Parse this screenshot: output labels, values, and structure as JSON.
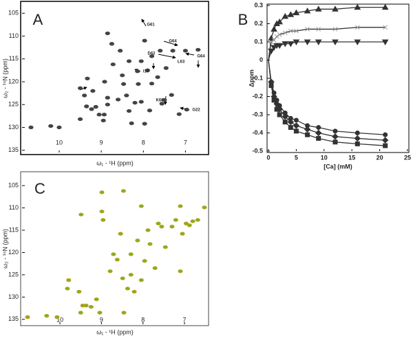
{
  "chart_data": [
    {
      "type": "scatter",
      "panel_label": "A",
      "x_label": "ω₁ - ¹H  (ppm)",
      "y_label": "ω₂ - ¹⁵N  (ppm)",
      "xlim": [
        10.85,
        6.5
      ],
      "ylim": [
        135.5,
        103
      ],
      "xticks": [
        10,
        9,
        8,
        7
      ],
      "yticks": [
        105,
        110,
        115,
        120,
        125,
        130,
        135
      ],
      "color": "#444444",
      "x": [
        10.67,
        10.2,
        10.0,
        9.5,
        9.5,
        9.35,
        9.23,
        9.13,
        9.05,
        8.93,
        8.85,
        8.75,
        8.72,
        8.6,
        8.5,
        8.47,
        8.4,
        8.34,
        8.28,
        8.2,
        8.12,
        8.05,
        7.97,
        7.9,
        7.8,
        7.66,
        7.56,
        7.46,
        7.33,
        9.4,
        9.2,
        8.92,
        8.85,
        8.95,
        8.55,
        8.34,
        8.14,
        8.05,
        7.85,
        7.5,
        7.15,
        6.97,
        7.8,
        7.97,
        8.85,
        9.33,
        7.6,
        7.3,
        7.0,
        6.7
      ],
      "values": [
        130.0,
        129.7,
        130.0,
        128.2,
        121.4,
        125.4,
        126.0,
        125.5,
        127.2,
        127.2,
        109.4,
        111.7,
        116.2,
        123.9,
        118.6,
        120.5,
        123.0,
        126.4,
        129.1,
        124.6,
        120.5,
        115.5,
        111.0,
        117.5,
        114.4,
        119.0,
        124.8,
        117.0,
        122.9,
        123.0,
        122.0,
        120.0,
        125.0,
        128.5,
        113.2,
        115.5,
        117.7,
        124.4,
        126.3,
        124.0,
        127.1,
        126.1,
        120.4,
        129.2,
        123.5,
        119.3,
        113.2,
        113.2,
        113.2,
        113.0
      ],
      "annotations": [
        "G61",
        "G64",
        "D62",
        "L63",
        "G64",
        "I16",
        "K66",
        "G22"
      ]
    },
    {
      "type": "line",
      "panel_label": "B",
      "x_label": "[Ca] (mM)",
      "y_label": "Δppm",
      "xlim": [
        0,
        25
      ],
      "ylim": [
        -0.5,
        0.3
      ],
      "xticks": [
        0,
        5,
        10,
        15,
        20,
        25
      ],
      "yticks": [
        -0.5,
        -0.4,
        -0.3,
        -0.2,
        -0.1,
        0,
        0.1,
        0.2,
        0.3
      ],
      "x": [
        0,
        0.5,
        1,
        1.5,
        2,
        3,
        4,
        5,
        7,
        9,
        12,
        16,
        21
      ],
      "series": [
        {
          "marker": "triangle-up",
          "color": "#333333",
          "values": [
            0,
            0.12,
            0.17,
            0.2,
            0.21,
            0.24,
            0.25,
            0.26,
            0.27,
            0.28,
            0.28,
            0.29,
            0.29
          ]
        },
        {
          "marker": "x",
          "color": "#999999",
          "values": [
            0,
            0.1,
            0.11,
            0.13,
            0.14,
            0.15,
            0.16,
            0.16,
            0.17,
            0.17,
            0.17,
            0.18,
            0.18
          ]
        },
        {
          "marker": "triangle-down",
          "color": "#333333",
          "values": [
            0,
            0.05,
            0.07,
            0.08,
            0.08,
            0.09,
            0.09,
            0.1,
            0.1,
            0.1,
            0.1,
            0.1,
            0.1
          ]
        },
        {
          "marker": "circle",
          "color": "#333333",
          "values": [
            0,
            -0.12,
            -0.18,
            -0.22,
            -0.25,
            -0.29,
            -0.32,
            -0.33,
            -0.36,
            -0.37,
            -0.39,
            -0.4,
            -0.41
          ]
        },
        {
          "marker": "diamond",
          "color": "#333333",
          "values": [
            0,
            -0.12,
            -0.2,
            -0.24,
            -0.27,
            -0.31,
            -0.34,
            -0.36,
            -0.38,
            -0.4,
            -0.42,
            -0.43,
            -0.44
          ]
        },
        {
          "marker": "square",
          "color": "#333333",
          "values": [
            0,
            -0.14,
            -0.22,
            -0.27,
            -0.3,
            -0.34,
            -0.37,
            -0.39,
            -0.41,
            -0.43,
            -0.45,
            -0.46,
            -0.47
          ]
        }
      ]
    },
    {
      "type": "scatter",
      "panel_label": "C",
      "x_label": "ω₁ - ¹H  (ppm)",
      "y_label": "ω₂ - ¹⁵N  (ppm)",
      "xlim": [
        10.88,
        6.47
      ],
      "ylim": [
        136.1,
        102.2
      ],
      "xticks": [
        10,
        9,
        8,
        7
      ],
      "yticks": [
        105,
        110,
        115,
        120,
        125,
        130,
        135
      ],
      "color": "#7cb518",
      "edge_color": "#d39a2a",
      "x": [
        10.78,
        10.32,
        10.07,
        9.82,
        9.79,
        9.54,
        9.5,
        9.45,
        9.37,
        9.25,
        9.12,
        9.04,
        8.99,
        8.79,
        8.71,
        8.62,
        8.49,
        8.46,
        8.37,
        8.29,
        8.21,
        8.04,
        7.96,
        7.88,
        7.83,
        7.71,
        7.63,
        7.55,
        7.46,
        7.3,
        7.21,
        7.1,
        7.05,
        6.96,
        6.88,
        6.8,
        6.68,
        8.96,
        8.54,
        8.13,
        8.29,
        8.04,
        7.1,
        9.49,
        8.99,
        8.47,
        6.52
      ],
      "values": [
        134.5,
        134.2,
        134.5,
        128.1,
        126.2,
        128.8,
        133.5,
        131.9,
        131.9,
        132.2,
        130.5,
        133.5,
        110.8,
        124.2,
        120.4,
        121.6,
        125.8,
        133.5,
        128.1,
        125,
        128.8,
        126.2,
        121.9,
        115,
        118.1,
        123.5,
        113.5,
        114.2,
        118.8,
        114.2,
        112.7,
        124.2,
        115.8,
        113.5,
        113.9,
        113,
        112.7,
        112.7,
        115.8,
        117.3,
        120.4,
        109.6,
        109.6,
        111.5,
        106.5,
        106.2,
        109.9
      ]
    }
  ]
}
